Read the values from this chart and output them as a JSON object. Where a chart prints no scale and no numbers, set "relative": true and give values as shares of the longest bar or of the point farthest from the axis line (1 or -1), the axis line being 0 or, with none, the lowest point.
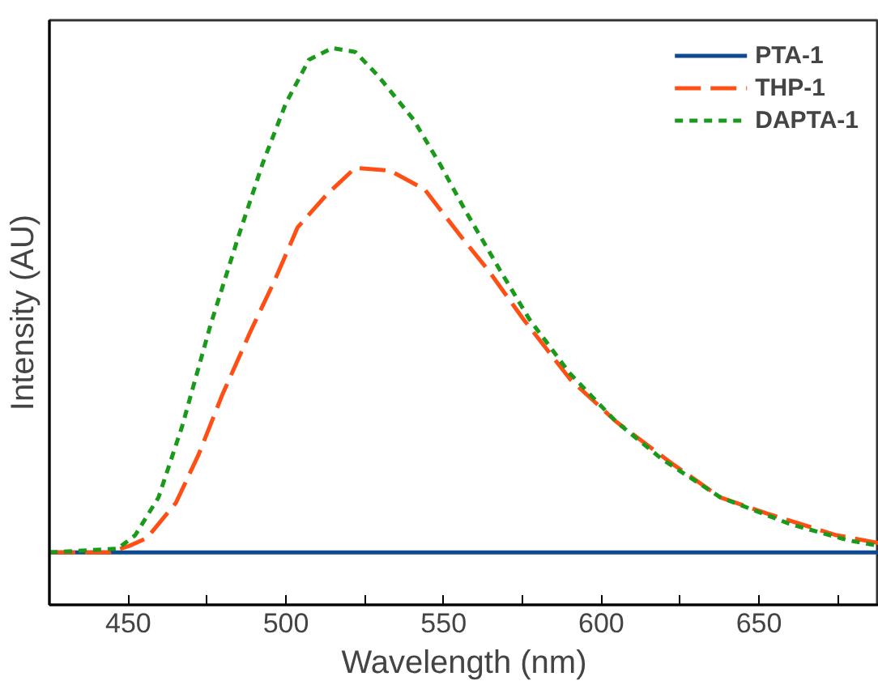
{
  "chart_data": {
    "type": "line",
    "relative": true,
    "xlabel": "Wavelength (nm)",
    "ylabel": "Intensity (AU)",
    "xlim": [
      425,
      688
    ],
    "xticks": [
      450,
      {
        "value": 475,
        "label": null
      },
      500,
      {
        "value": 525,
        "label": null
      },
      550,
      {
        "value": 575,
        "label": null
      },
      600,
      {
        "value": 625,
        "label": null
      },
      650,
      {
        "value": 675,
        "label": null
      }
    ],
    "legend": "top right",
    "grid": false,
    "series": [
      {
        "name": "PTA-1",
        "color": "#0d4a8f",
        "line_style": "solid",
        "x": [
          425,
          450,
          500,
          550,
          600,
          650,
          688
        ],
        "values": [
          0.094,
          0.094,
          0.094,
          0.094,
          0.094,
          0.094,
          0.094
        ]
      },
      {
        "name": "THP-1",
        "color": "#ff4f14",
        "line_style": "dashed",
        "x": [
          425,
          444,
          450.4,
          455.9,
          465.1,
          472.4,
          479.8,
          489,
          496.3,
          503.7,
          512.8,
          522,
          533,
          544,
          556,
          564.3,
          575.3,
          590,
          604.7,
          623.1,
          637.8,
          652.5,
          674.6,
          688
        ],
        "values": [
          0.094,
          0.094,
          0.106,
          0.12,
          0.183,
          0.271,
          0.377,
          0.494,
          0.581,
          0.678,
          0.736,
          0.785,
          0.78,
          0.746,
          0.658,
          0.6,
          0.513,
          0.406,
          0.329,
          0.251,
          0.193,
          0.164,
          0.125,
          0.111
        ]
      },
      {
        "name": "DAPTA-1",
        "color": "#1a9a1a",
        "line_style": "dotted",
        "x": [
          425,
          446.7,
          452.2,
          459.6,
          467,
          476.1,
          485.3,
          492.7,
          500,
          507.3,
          514.7,
          522,
          529.4,
          540.4,
          549,
          557,
          568,
          577.2,
          590,
          604.7,
          619.4,
          637.8,
          659.9,
          678.2,
          688
        ],
        "values": [
          0.094,
          0.101,
          0.125,
          0.193,
          0.319,
          0.503,
          0.668,
          0.794,
          0.901,
          0.979,
          1.0,
          0.993,
          0.949,
          0.872,
          0.79,
          0.707,
          0.6,
          0.513,
          0.416,
          0.329,
          0.261,
          0.193,
          0.145,
          0.116,
          0.106
        ]
      }
    ]
  }
}
